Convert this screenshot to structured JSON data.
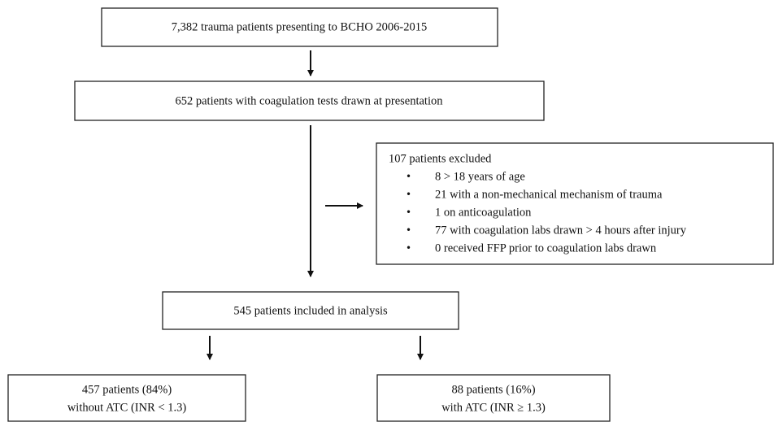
{
  "nodes": [
    {
      "label": "7,382 trauma patients presenting to BCHO 2006-2015"
    },
    {
      "label": "652 patients with coagulation tests drawn at presentation"
    },
    {
      "label": "107 patients excluded",
      "items": [
        "8 > 18 years of age",
        "21 with a non-mechanical mechanism of trauma",
        "1 on anticoagulation",
        "77 with coagulation labs drawn > 4 hours after injury",
        "0 received FFP prior to coagulation labs drawn"
      ]
    },
    {
      "label": "545 patients included in analysis"
    },
    {
      "lines": [
        "457 patients (84%)",
        "without ATC (INR < 1.3)"
      ]
    },
    {
      "lines": [
        "88 patients (16%)",
        "with ATC (INR ≥ 1.3)"
      ]
    }
  ]
}
